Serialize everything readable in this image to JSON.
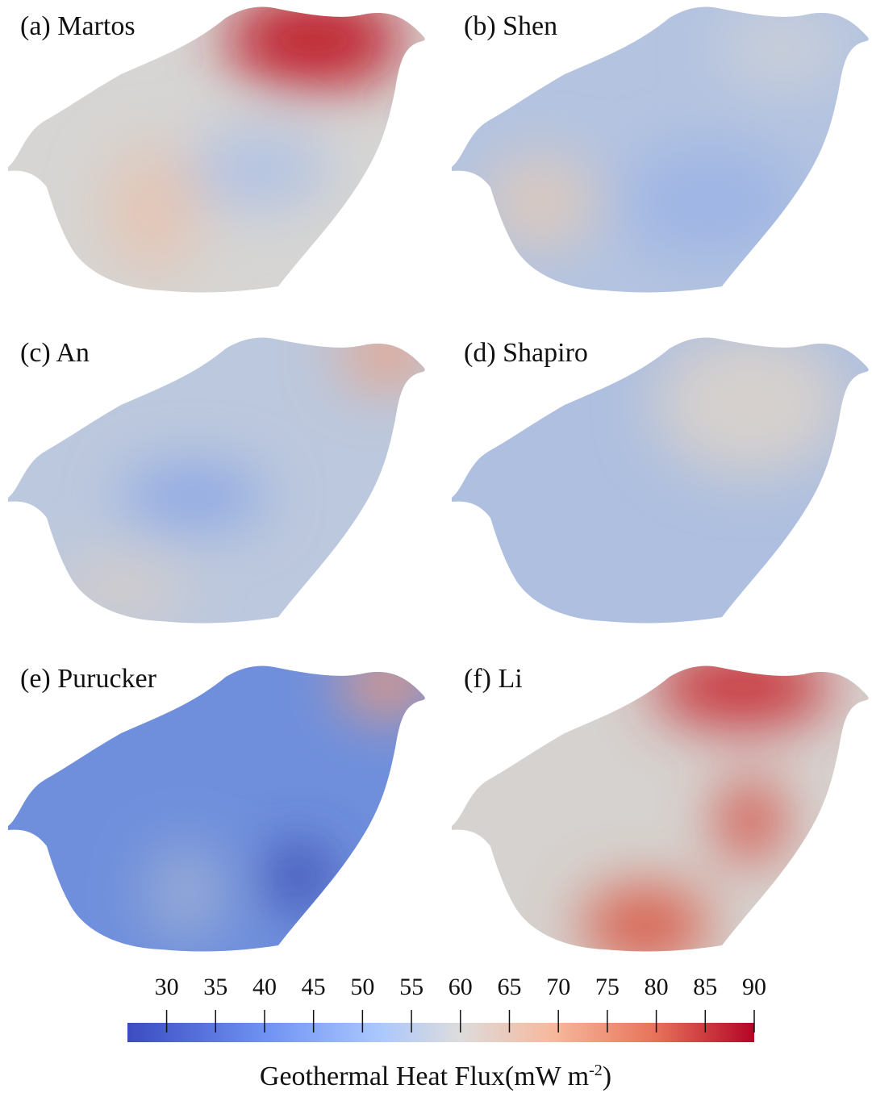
{
  "panels": [
    {
      "label": "(a) Martos"
    },
    {
      "label": "(b) Shen"
    },
    {
      "label": "(c) An"
    },
    {
      "label": "(d) Shapiro"
    },
    {
      "label": "(e) Purucker"
    },
    {
      "label": "(f) Li"
    }
  ],
  "colorbar": {
    "clim": [
      26,
      90
    ],
    "ticks": [
      30,
      35,
      40,
      45,
      50,
      55,
      60,
      65,
      70,
      75,
      80,
      85,
      90
    ],
    "label": "Geothermal Heat Flux(mW m",
    "label_superscript": "-2",
    "label_end": ")"
  }
}
